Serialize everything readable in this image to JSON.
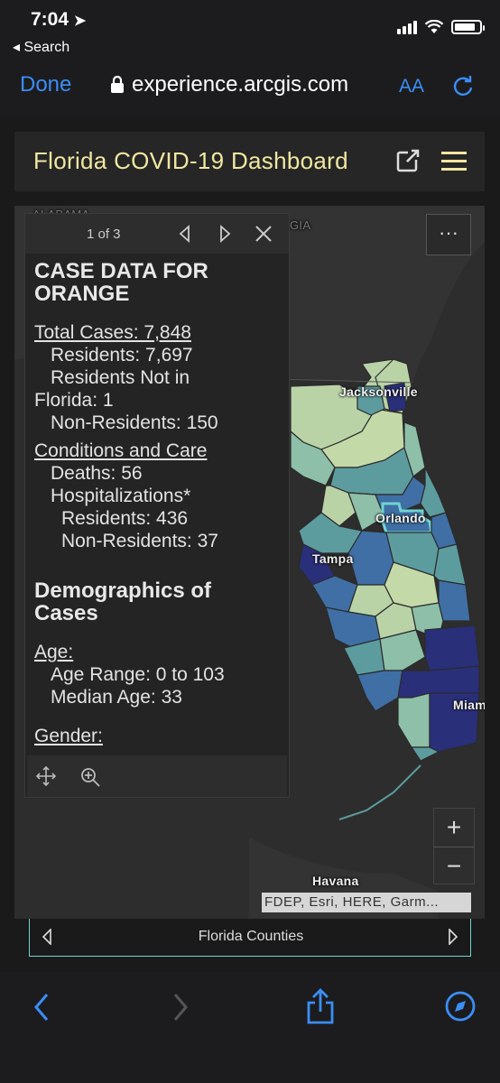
{
  "status": {
    "time": "7:04",
    "back_label": "◂ Search"
  },
  "browser": {
    "done": "Done",
    "url": "experience.arcgis.com",
    "text_size": "AA",
    "reload_icon": "reload-icon"
  },
  "header": {
    "title": "Florida COVID-19 Dashboard"
  },
  "map": {
    "more": "···",
    "labels": {
      "jacksonville": "Jacksonville",
      "orlando": "Orlando",
      "tampa": "Tampa",
      "miami": "Miam",
      "havana": "Havana",
      "alabama": "ALABAMA",
      "georgia": "GIA"
    },
    "attribution": "FDEP, Esri, HERE, Garm...",
    "zoom_in": "+",
    "zoom_out": "−"
  },
  "popup": {
    "pager": "1 of 3",
    "title": "CASE DATA FOR ORANGE",
    "total_cases": "Total Cases: 7,848",
    "residents": "Residents: 7,697",
    "not_in_fl_1": "Residents Not in",
    "not_in_fl_2": "Florida: 1",
    "non_residents": "Non-Residents: 150",
    "conditions": "Conditions and Care",
    "deaths": "Deaths: 56",
    "hosp": "Hospitalizations*",
    "hosp_res": "Residents: 436",
    "hosp_nonres": "Non-Residents: 37",
    "demographics": "Demographics of Cases",
    "age": "Age:",
    "age_range": "Age Range: 0 to 103",
    "median_age": "Median Age: 33",
    "gender": "Gender:"
  },
  "layerbar": {
    "name": "Florida Counties"
  },
  "colors": {
    "accent": "#3a8ef6",
    "title": "#f1e7a1",
    "highlight": "#6fd4d0",
    "dark_county": "#2a2f7a",
    "mid_county": "#3f6fa5",
    "teal_county": "#5d9c9e",
    "light_county": "#b9d3a7"
  }
}
